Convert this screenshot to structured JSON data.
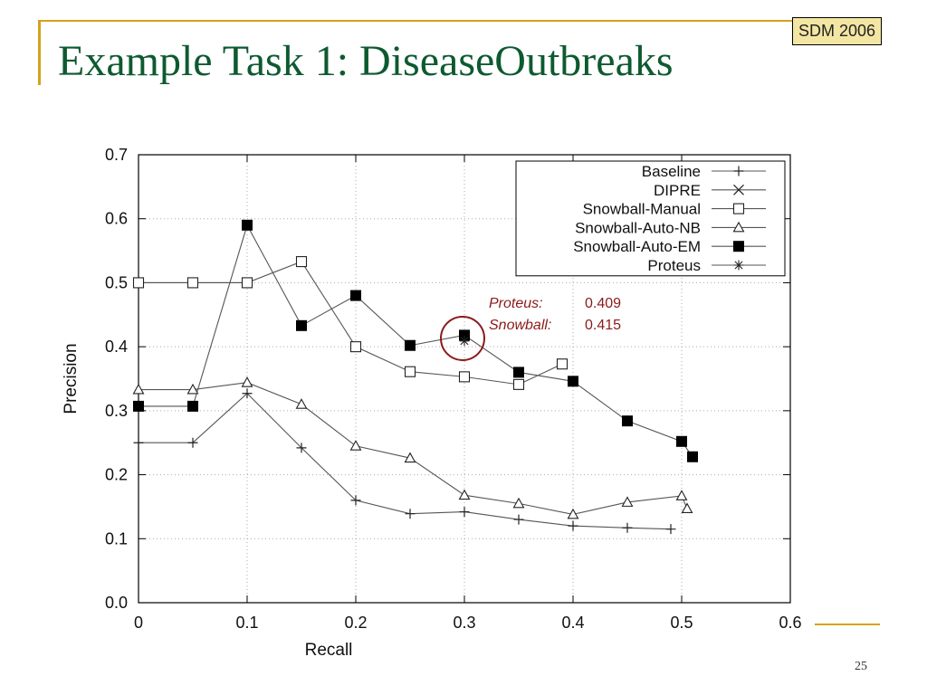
{
  "slide": {
    "title": "Example Task 1: DiseaseOutbreaks",
    "badge": "SDM 2006",
    "page_number": "25"
  },
  "colors": {
    "title": "#0e5a30",
    "accent": "#d4a21a",
    "annotation": "#8b1a1a"
  },
  "annotation": {
    "proteus_label": "Proteus:",
    "proteus_value": "0.409",
    "snowball_label": "Snowball:",
    "snowball_value": "0.415"
  },
  "chart_data": {
    "type": "line",
    "xlabel": "Recall",
    "ylabel": "Precision",
    "xlim": [
      0,
      0.6
    ],
    "ylim": [
      0,
      0.7
    ],
    "xticks": [
      "0",
      "0.1",
      "0.2",
      "0.3",
      "0.4",
      "0.5",
      "0.6"
    ],
    "yticks": [
      "0.0",
      "0.1",
      "0.2",
      "0.3",
      "0.4",
      "0.5",
      "0.6",
      "0.7"
    ],
    "grid": true,
    "legend_position": "top-right",
    "series": [
      {
        "name": "Baseline",
        "marker": "plus",
        "points": [
          [
            0,
            0.25
          ],
          [
            0.05,
            0.25
          ],
          [
            0.1,
            0.327
          ],
          [
            0.15,
            0.242
          ],
          [
            0.2,
            0.16
          ],
          [
            0.25,
            0.139
          ],
          [
            0.3,
            0.142
          ],
          [
            0.35,
            0.13
          ],
          [
            0.4,
            0.12
          ],
          [
            0.45,
            0.117
          ],
          [
            0.49,
            0.115
          ]
        ]
      },
      {
        "name": "DIPRE",
        "marker": "x",
        "points": [
          [
            0,
            0.5
          ],
          [
            0.05,
            0.5
          ],
          [
            0.1,
            0.5
          ]
        ]
      },
      {
        "name": "Snowball-Manual",
        "marker": "square-open",
        "points": [
          [
            0,
            0.5
          ],
          [
            0.05,
            0.5
          ],
          [
            0.1,
            0.5
          ],
          [
            0.15,
            0.533
          ],
          [
            0.2,
            0.4
          ],
          [
            0.25,
            0.361
          ],
          [
            0.3,
            0.353
          ],
          [
            0.35,
            0.341
          ],
          [
            0.39,
            0.373
          ]
        ]
      },
      {
        "name": "Snowball-Auto-NB",
        "marker": "triangle-open",
        "points": [
          [
            0,
            0.333
          ],
          [
            0.05,
            0.333
          ],
          [
            0.1,
            0.344
          ],
          [
            0.15,
            0.31
          ],
          [
            0.2,
            0.245
          ],
          [
            0.25,
            0.226
          ],
          [
            0.3,
            0.168
          ],
          [
            0.35,
            0.155
          ],
          [
            0.4,
            0.138
          ],
          [
            0.45,
            0.157
          ],
          [
            0.5,
            0.167
          ],
          [
            0.505,
            0.147
          ]
        ]
      },
      {
        "name": "Snowball-Auto-EM",
        "marker": "square-filled",
        "points": [
          [
            0,
            0.307
          ],
          [
            0.05,
            0.307
          ],
          [
            0.1,
            0.59
          ],
          [
            0.15,
            0.433
          ],
          [
            0.2,
            0.48
          ],
          [
            0.25,
            0.402
          ],
          [
            0.3,
            0.418
          ],
          [
            0.35,
            0.36
          ],
          [
            0.4,
            0.346
          ],
          [
            0.45,
            0.284
          ],
          [
            0.5,
            0.252
          ],
          [
            0.51,
            0.228
          ]
        ]
      },
      {
        "name": "Proteus",
        "marker": "star",
        "points": [
          [
            0.3,
            0.409
          ]
        ]
      }
    ]
  }
}
